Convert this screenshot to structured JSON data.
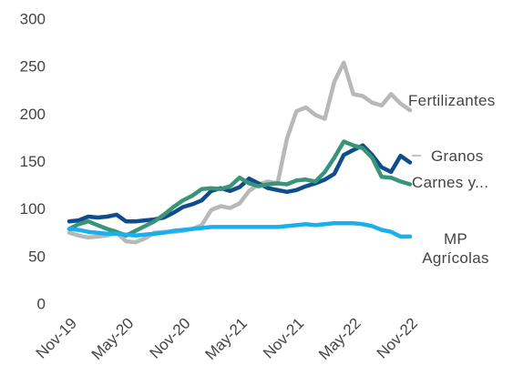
{
  "chart_data": {
    "type": "line",
    "categories": [
      "Nov-19",
      null,
      null,
      null,
      null,
      null,
      "May-20",
      null,
      null,
      null,
      null,
      null,
      "Nov-20",
      null,
      null,
      null,
      null,
      null,
      "May-21",
      null,
      null,
      null,
      null,
      null,
      "Nov-21",
      null,
      null,
      null,
      null,
      null,
      "May-22",
      null,
      null,
      null,
      null,
      null,
      "Nov-22"
    ],
    "ylim": [
      0,
      300
    ],
    "yticks": [
      0,
      50,
      100,
      150,
      200,
      250,
      300
    ],
    "grid": false,
    "series": [
      {
        "name": "Fertilizantes",
        "color": "#b8b8b8",
        "values": [
          76,
          73,
          71,
          72,
          73,
          76,
          67,
          66,
          70,
          76,
          77,
          77,
          78,
          80,
          84,
          100,
          104,
          102,
          107,
          120,
          127,
          130,
          128,
          175,
          204,
          208,
          200,
          196,
          235,
          255,
          222,
          220,
          213,
          210,
          222,
          212,
          205
        ]
      },
      {
        "name": "Granos",
        "color": "#0f4c8c",
        "values": [
          88,
          89,
          93,
          92,
          93,
          95,
          88,
          88,
          89,
          90,
          92,
          97,
          103,
          106,
          110,
          120,
          123,
          120,
          124,
          133,
          128,
          123,
          121,
          119,
          121,
          125,
          128,
          132,
          138,
          158,
          163,
          168,
          158,
          145,
          140,
          157,
          150
        ]
      },
      {
        "name": "Carnes y...",
        "color": "#3a9479",
        "values": [
          80,
          85,
          88,
          84,
          80,
          77,
          73,
          78,
          83,
          88,
          95,
          103,
          110,
          115,
          122,
          123,
          122,
          125,
          134,
          128,
          125,
          127,
          128,
          127,
          131,
          132,
          130,
          140,
          155,
          172,
          168,
          165,
          155,
          135,
          134,
          130,
          127
        ]
      },
      {
        "name": "MP Agrícolas",
        "color": "#1ab0ee",
        "values": [
          80,
          79,
          77,
          76,
          75,
          75,
          74,
          73,
          74,
          75,
          76,
          78,
          79,
          80,
          81,
          82,
          82,
          82,
          82,
          82,
          82,
          82,
          82,
          83,
          84,
          85,
          84,
          85,
          86,
          86,
          86,
          85,
          83,
          79,
          77,
          72,
          72
        ]
      }
    ]
  }
}
